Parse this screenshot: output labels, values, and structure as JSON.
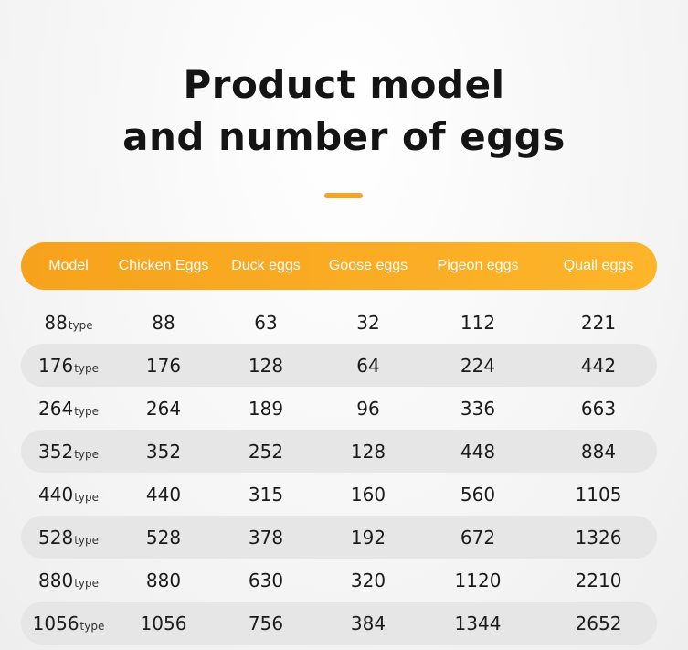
{
  "title": {
    "line1": "Product model",
    "line2": "and number of eggs"
  },
  "colors": {
    "accent": "#f5a623",
    "header_bg": "#fdae22",
    "row_shade": "#e6e6e6"
  },
  "table": {
    "headers": [
      "Model",
      "Chicken Eggs",
      "Duck eggs",
      "Goose eggs",
      "Pigeon eggs",
      "Quail eggs"
    ],
    "rows": [
      {
        "model": "88",
        "suffix": "type",
        "chicken": "88",
        "duck": "63",
        "goose": "32",
        "pigeon": "112",
        "quail": "221"
      },
      {
        "model": "176",
        "suffix": "type",
        "chicken": "176",
        "duck": "128",
        "goose": "64",
        "pigeon": "224",
        "quail": "442"
      },
      {
        "model": "264",
        "suffix": "type",
        "chicken": "264",
        "duck": "189",
        "goose": "96",
        "pigeon": "336",
        "quail": "663"
      },
      {
        "model": "352",
        "suffix": "type",
        "chicken": "352",
        "duck": "252",
        "goose": "128",
        "pigeon": "448",
        "quail": "884"
      },
      {
        "model": "440",
        "suffix": "type",
        "chicken": "440",
        "duck": "315",
        "goose": "160",
        "pigeon": "560",
        "quail": "1105"
      },
      {
        "model": "528",
        "suffix": "type",
        "chicken": "528",
        "duck": "378",
        "goose": "192",
        "pigeon": "672",
        "quail": "1326"
      },
      {
        "model": "880",
        "suffix": "type",
        "chicken": "880",
        "duck": "630",
        "goose": "320",
        "pigeon": "1120",
        "quail": "2210"
      },
      {
        "model": "1056",
        "suffix": "type",
        "chicken": "1056",
        "duck": "756",
        "goose": "384",
        "pigeon": "1344",
        "quail": "2652"
      }
    ]
  }
}
